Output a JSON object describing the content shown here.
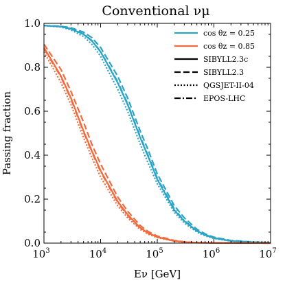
{
  "chart_data": {
    "type": "line",
    "title": "Conventional νμ",
    "xlabel": "Eν [GeV]",
    "ylabel": "Passing fraction",
    "xscale": "log",
    "xlim": [
      1000,
      10000000
    ],
    "ylim": [
      0,
      1.0
    ],
    "xticks": [
      {
        "value": 1000,
        "base": "10",
        "exp": "3"
      },
      {
        "value": 10000,
        "base": "10",
        "exp": "4"
      },
      {
        "value": 100000,
        "base": "10",
        "exp": "5"
      },
      {
        "value": 1000000,
        "base": "10",
        "exp": "6"
      },
      {
        "value": 10000000,
        "base": "10",
        "exp": "7"
      }
    ],
    "yticks": [
      {
        "value": 0.0,
        "label": "0.0"
      },
      {
        "value": 0.2,
        "label": "0.2"
      },
      {
        "value": 0.4,
        "label": "0.4"
      },
      {
        "value": 0.6,
        "label": "0.6"
      },
      {
        "value": 0.8,
        "label": "0.8"
      },
      {
        "value": 1.0,
        "label": "1.0"
      }
    ],
    "legend": {
      "placement": "top-right",
      "entries": [
        {
          "label": "cos θz = 0.25",
          "color": "#2aa3c7",
          "style": "solid"
        },
        {
          "label": "cos θz = 0.85",
          "color": "#f26a3c",
          "style": "solid"
        },
        {
          "label": "SIBYLL2.3c",
          "color": "#000000",
          "style": "solid"
        },
        {
          "label": "SIBYLL2.3",
          "color": "#000000",
          "style": "dashed"
        },
        {
          "label": "QGSJET-II-04",
          "color": "#000000",
          "style": "dotted"
        },
        {
          "label": "EPOS-LHC",
          "color": "#000000",
          "style": "dashdot"
        }
      ]
    },
    "colors": {
      "cos025": "#2aa3c7",
      "cos085": "#f26a3c"
    },
    "series": [
      {
        "zenith": "cos025",
        "model": "SIBYLL2.3c",
        "style": "solid",
        "color": "#2aa3c7",
        "x": [
          1000,
          2000,
          3000,
          5000,
          7000,
          10000,
          20000,
          30000,
          50000,
          70000,
          100000,
          200000,
          300000,
          500000,
          700000,
          1000000,
          2000000,
          5000000,
          10000000
        ],
        "y": [
          0.99,
          0.985,
          0.975,
          0.95,
          0.92,
          0.87,
          0.73,
          0.63,
          0.48,
          0.39,
          0.29,
          0.15,
          0.1,
          0.055,
          0.037,
          0.023,
          0.01,
          0.004,
          0.002
        ]
      },
      {
        "zenith": "cos025",
        "model": "SIBYLL2.3",
        "style": "dashed",
        "color": "#2aa3c7",
        "x": [
          1000,
          2000,
          3000,
          5000,
          7000,
          10000,
          20000,
          30000,
          50000,
          70000,
          100000,
          200000,
          300000,
          500000,
          700000,
          1000000,
          2000000,
          5000000,
          10000000
        ],
        "y": [
          0.99,
          0.987,
          0.98,
          0.96,
          0.935,
          0.89,
          0.76,
          0.66,
          0.51,
          0.42,
          0.315,
          0.17,
          0.115,
          0.063,
          0.042,
          0.027,
          0.012,
          0.005,
          0.002
        ]
      },
      {
        "zenith": "cos025",
        "model": "QGSJET-II-04",
        "style": "dotted",
        "color": "#2aa3c7",
        "x": [
          1000,
          2000,
          3000,
          5000,
          7000,
          10000,
          20000,
          30000,
          50000,
          70000,
          100000,
          200000,
          300000,
          500000,
          700000,
          1000000,
          2000000,
          5000000,
          10000000
        ],
        "y": [
          0.99,
          0.983,
          0.97,
          0.94,
          0.905,
          0.85,
          0.7,
          0.6,
          0.45,
          0.36,
          0.27,
          0.14,
          0.092,
          0.05,
          0.033,
          0.021,
          0.009,
          0.004,
          0.002
        ]
      },
      {
        "zenith": "cos025",
        "model": "EPOS-LHC",
        "style": "dashdot",
        "color": "#2aa3c7",
        "x": [
          1000,
          2000,
          3000,
          5000,
          7000,
          10000,
          20000,
          30000,
          50000,
          70000,
          100000,
          200000,
          300000,
          500000,
          700000,
          1000000,
          2000000,
          5000000,
          10000000
        ],
        "y": [
          0.99,
          0.985,
          0.976,
          0.952,
          0.922,
          0.872,
          0.735,
          0.635,
          0.485,
          0.395,
          0.295,
          0.155,
          0.102,
          0.056,
          0.038,
          0.024,
          0.01,
          0.004,
          0.002
        ]
      },
      {
        "zenith": "cos085",
        "model": "SIBYLL2.3c",
        "style": "solid",
        "color": "#f26a3c",
        "x": [
          1000,
          2000,
          3000,
          5000,
          7000,
          10000,
          20000,
          30000,
          50000,
          70000,
          100000,
          200000,
          300000,
          500000,
          1000000,
          10000000
        ],
        "y": [
          0.89,
          0.76,
          0.66,
          0.51,
          0.42,
          0.33,
          0.19,
          0.13,
          0.07,
          0.045,
          0.028,
          0.01,
          0.005,
          0.002,
          0.001,
          0.0
        ]
      },
      {
        "zenith": "cos085",
        "model": "SIBYLL2.3",
        "style": "dashed",
        "color": "#f26a3c",
        "x": [
          1000,
          2000,
          3000,
          5000,
          7000,
          10000,
          20000,
          30000,
          50000,
          70000,
          100000,
          200000,
          300000,
          500000,
          1000000,
          10000000
        ],
        "y": [
          0.905,
          0.79,
          0.69,
          0.55,
          0.45,
          0.36,
          0.21,
          0.145,
          0.08,
          0.052,
          0.032,
          0.012,
          0.006,
          0.002,
          0.001,
          0.0
        ]
      },
      {
        "zenith": "cos085",
        "model": "QGSJET-II-04",
        "style": "dotted",
        "color": "#f26a3c",
        "x": [
          1000,
          2000,
          3000,
          5000,
          7000,
          10000,
          20000,
          30000,
          50000,
          70000,
          100000,
          200000,
          300000,
          500000,
          1000000,
          10000000
        ],
        "y": [
          0.87,
          0.73,
          0.63,
          0.48,
          0.39,
          0.3,
          0.17,
          0.115,
          0.062,
          0.04,
          0.025,
          0.009,
          0.004,
          0.002,
          0.001,
          0.0
        ]
      },
      {
        "zenith": "cos085",
        "model": "EPOS-LHC",
        "style": "dashdot",
        "color": "#f26a3c",
        "x": [
          1000,
          2000,
          3000,
          5000,
          7000,
          10000,
          20000,
          30000,
          50000,
          70000,
          100000,
          200000,
          300000,
          500000,
          1000000,
          10000000
        ],
        "y": [
          0.885,
          0.755,
          0.655,
          0.505,
          0.415,
          0.325,
          0.185,
          0.125,
          0.068,
          0.044,
          0.027,
          0.01,
          0.005,
          0.002,
          0.001,
          0.0
        ]
      }
    ]
  }
}
